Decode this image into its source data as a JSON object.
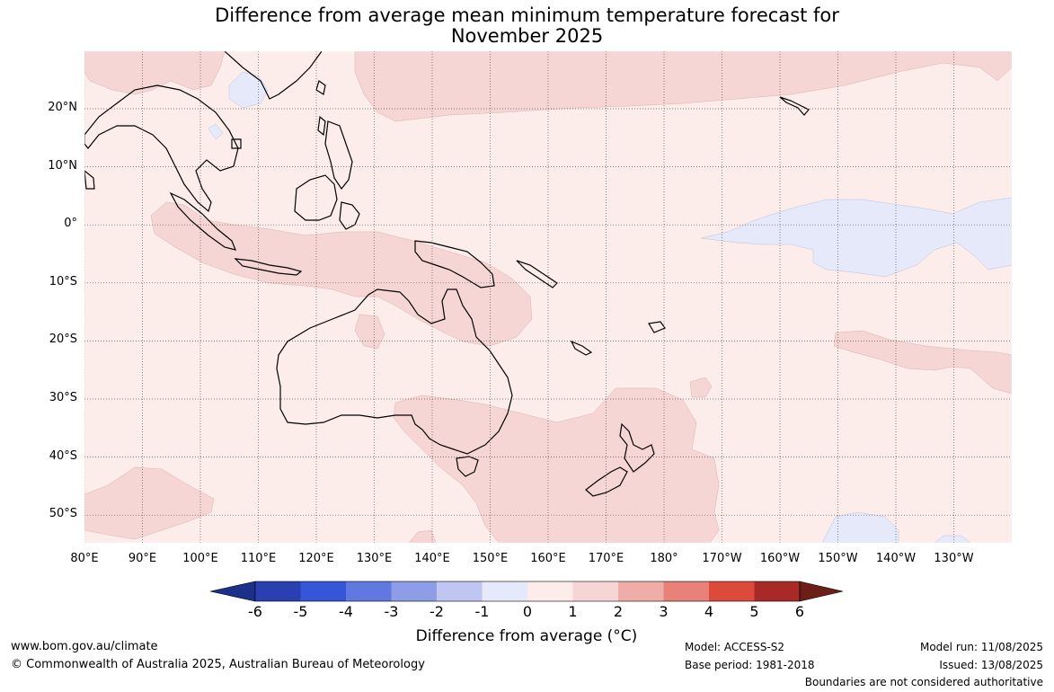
{
  "title_line1": "Difference from average mean minimum temperature forecast for",
  "title_line2": "November 2025",
  "lat_labels": [
    "20°N",
    "10°N",
    "0°",
    "10°S",
    "20°S",
    "30°S",
    "40°S",
    "50°S"
  ],
  "lon_labels": [
    "80°E",
    "90°E",
    "100°E",
    "110°E",
    "120°E",
    "130°E",
    "140°E",
    "150°E",
    "160°E",
    "170°E",
    "180°",
    "170°W",
    "160°W",
    "150°W",
    "140°W",
    "130°W"
  ],
  "colorbar": {
    "tick_labels": [
      "-6",
      "-5",
      "-4",
      "-3",
      "-2",
      "-1",
      "0",
      "1",
      "2",
      "3",
      "4",
      "5",
      "6"
    ],
    "colors": [
      "#1c2f8a",
      "#2a3fb0",
      "#3556d8",
      "#6078e0",
      "#8d9de8",
      "#bfc6f1",
      "#e6e9fa",
      "#fcecea",
      "#f6d6d4",
      "#eeaea7",
      "#e88279",
      "#dc4a3c",
      "#a82a26",
      "#6e1e18"
    ],
    "title": "Difference from average (°C)"
  },
  "map": {
    "background_color": "#fcecea",
    "warm_color": "#f6d6d4",
    "cool_color": "#e6e9fa",
    "gridlines": "dotted"
  },
  "footer": {
    "website": "www.bom.gov.au/climate",
    "copyright": "© Commonwealth of Australia 2025, Australian Bureau of Meteorology",
    "model": "Model: ACCESS-S2",
    "base_period": "Base period: 1981-2018",
    "model_run": "Model run: 11/08/2025",
    "issued": "Issued: 13/08/2025",
    "disclaimer": "Boundaries are not considered authoritative"
  }
}
